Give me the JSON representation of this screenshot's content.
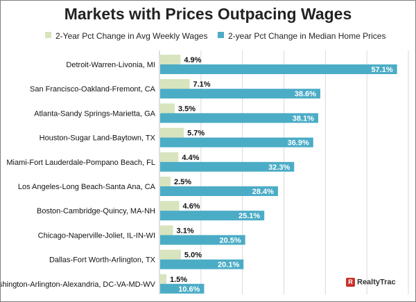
{
  "chart_data": {
    "type": "bar",
    "orientation": "horizontal",
    "title": "Markets with Prices Outpacing Wages",
    "categories": [
      "Detroit-Warren-Livonia, MI",
      "San Francisco-Oakland-Fremont, CA",
      "Atlanta-Sandy Springs-Marietta, GA",
      "Houston-Sugar Land-Baytown, TX",
      "Miami-Fort Lauderdale-Pompano Beach, FL",
      "Los Angeles-Long Beach-Santa Ana, CA",
      "Boston-Cambridge-Quincy, MA-NH",
      "Chicago-Naperville-Joliet, IL-IN-WI",
      "Dallas-Fort Worth-Arlington, TX",
      "Washington-Arlington-Alexandria, DC-VA-MD-WV"
    ],
    "series": [
      {
        "name": "2-Year Pct Change in Avg Weekly Wages",
        "color": "#d7e4bd",
        "label_color": "#111111",
        "values": [
          4.9,
          7.1,
          3.5,
          5.7,
          4.4,
          2.5,
          4.6,
          3.1,
          5.0,
          1.5
        ],
        "labels": [
          "4.9%",
          "7.1%",
          "3.5%",
          "5.7%",
          "4.4%",
          "2.5%",
          "4.6%",
          "3.1%",
          "5.0%",
          "1.5%"
        ]
      },
      {
        "name": "2-year Pct Change in Median Home Prices",
        "color": "#4bacc6",
        "label_color": "#ffffff",
        "values": [
          57.1,
          38.6,
          38.1,
          36.9,
          32.3,
          28.4,
          25.1,
          20.5,
          20.1,
          10.6
        ],
        "labels": [
          "57.1%",
          "38.6%",
          "38.1%",
          "36.9%",
          "32.3%",
          "28.4%",
          "25.1%",
          "20.5%",
          "20.1%",
          "10.6%"
        ]
      }
    ],
    "xlim": [
      0,
      60
    ],
    "grid": true,
    "legend_position": "top"
  },
  "branding": {
    "logo_text": "RealtyTrac",
    "logo_color": "#c8332b"
  }
}
